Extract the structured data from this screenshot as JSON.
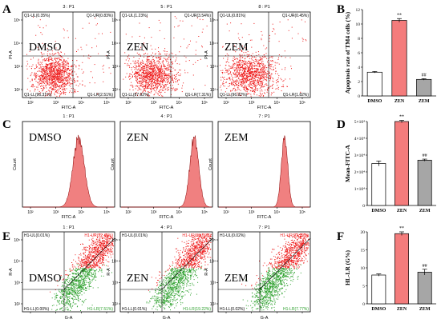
{
  "panel_letters": [
    "A",
    "B",
    "C",
    "D",
    "E",
    "F"
  ],
  "dot_plots_a": [
    {
      "header": "3 : P1",
      "name": "DMSO",
      "q_ul": "Q1-UL(0.35%)",
      "q_ur": "Q1-UR(0.83%)",
      "q_ll": "Q1-LL(96.31%)",
      "q_lr": "Q1-LR(2.51%)"
    },
    {
      "header": "5 : P1",
      "name": "ZEN",
      "q_ul": "Q1-UL(1.23%)",
      "q_ur": "Q1-UR(3.54%)",
      "q_ll": "Q1-LL(87.92%)",
      "q_lr": "Q1-LR(7.31%)"
    },
    {
      "header": "8 : P1",
      "name": "ZEM",
      "q_ul": "Q1-UL(0.81%)",
      "q_ur": "Q1-UR(0.45%)",
      "q_ll": "Q1-LL(96.92%)",
      "q_lr": "Q1-LR(1.82%)"
    }
  ],
  "dot_axes_a": {
    "x": "FITC-A",
    "y": "PI-A"
  },
  "histograms_c": [
    {
      "header": "1 : P1",
      "name": "DMSO",
      "peak": 3.9
    },
    {
      "header": "4 : P1",
      "name": "ZEN",
      "peak": 4.6
    },
    {
      "header": "7 : P1",
      "name": "ZEM",
      "peak": 4.3
    }
  ],
  "hist_axes_c": {
    "x": "FITC-A",
    "y": "Count"
  },
  "dot_plots_e": [
    {
      "header": "1 : P1",
      "name": "DMSO",
      "q_ul": "H1-UL(0.01%)",
      "q_ur": "H1-UR(92.48%)",
      "q_ll": "H1-LL(0.00%)",
      "q_lr": "H1-LR(7.51%)"
    },
    {
      "header": "4 : P1",
      "name": "ZEN",
      "q_ul": "H1-UL(0.01%)",
      "q_ur": "H1-UR(80.76%)",
      "q_ll": "H1-LL(0.01%)",
      "q_lr": "H1-LR(19.22%)"
    },
    {
      "header": "7 : P1",
      "name": "ZEM",
      "q_ul": "H1-UL(0.02%)",
      "q_ur": "H1-UR(92.19%)",
      "q_ll": "H1-LL(0.02%)",
      "q_lr": "H1-LR(7.77%)"
    }
  ],
  "dot_axes_e": {
    "x": "G-A",
    "y": "R-A"
  },
  "log_ticks": [
    "10²",
    "10³",
    "10⁴",
    "10⁵"
  ],
  "colors": {
    "red": "#ee1c1c",
    "green": "#2ca02c",
    "bar_red": "#f47c7c",
    "bar_gray": "#a6a6a6",
    "hist_fill": "#f08080"
  },
  "chart_data": [
    {
      "panel": "B",
      "type": "bar",
      "categories": [
        "DMSO",
        "ZEN",
        "ZEM"
      ],
      "values": [
        3.3,
        10.5,
        2.3
      ],
      "errors": [
        0.1,
        0.25,
        0.1
      ],
      "annotations": [
        "",
        "**",
        "##"
      ],
      "ylabel": "Apoptosis rate of TM4 cells (%)",
      "ylim": [
        0,
        12
      ],
      "yticks": [
        "0",
        "2",
        "4",
        "6",
        "8",
        "10",
        "12"
      ],
      "bar_colors": [
        "#ffffff",
        "#f47c7c",
        "#a6a6a6"
      ]
    },
    {
      "panel": "D",
      "type": "bar",
      "categories": [
        "DMSO",
        "ZEN",
        "ZEM"
      ],
      "values": [
        25000,
        50000,
        27000
      ],
      "errors": [
        1500,
        700,
        600
      ],
      "annotations": [
        "",
        "**",
        "##"
      ],
      "ylabel": "Mean-FITC-A",
      "ylim": [
        0,
        50000
      ],
      "yticks": [
        "0",
        "1×10⁴",
        "2×10⁴",
        "3×10⁴",
        "4×10⁴",
        "5×10⁴"
      ],
      "bar_colors": [
        "#ffffff",
        "#f47c7c",
        "#a6a6a6"
      ]
    },
    {
      "panel": "F",
      "type": "bar",
      "categories": [
        "DMSO",
        "ZEN",
        "ZEM"
      ],
      "values": [
        8,
        19.5,
        8.8
      ],
      "errors": [
        0.3,
        0.5,
        0.8
      ],
      "annotations": [
        "",
        "**",
        "##"
      ],
      "ylabel": "HL-LR (G%)",
      "ylim": [
        0,
        20
      ],
      "yticks": [
        "0",
        "5",
        "10",
        "15",
        "20"
      ],
      "bar_colors": [
        "#ffffff",
        "#f47c7c",
        "#a6a6a6"
      ]
    }
  ]
}
